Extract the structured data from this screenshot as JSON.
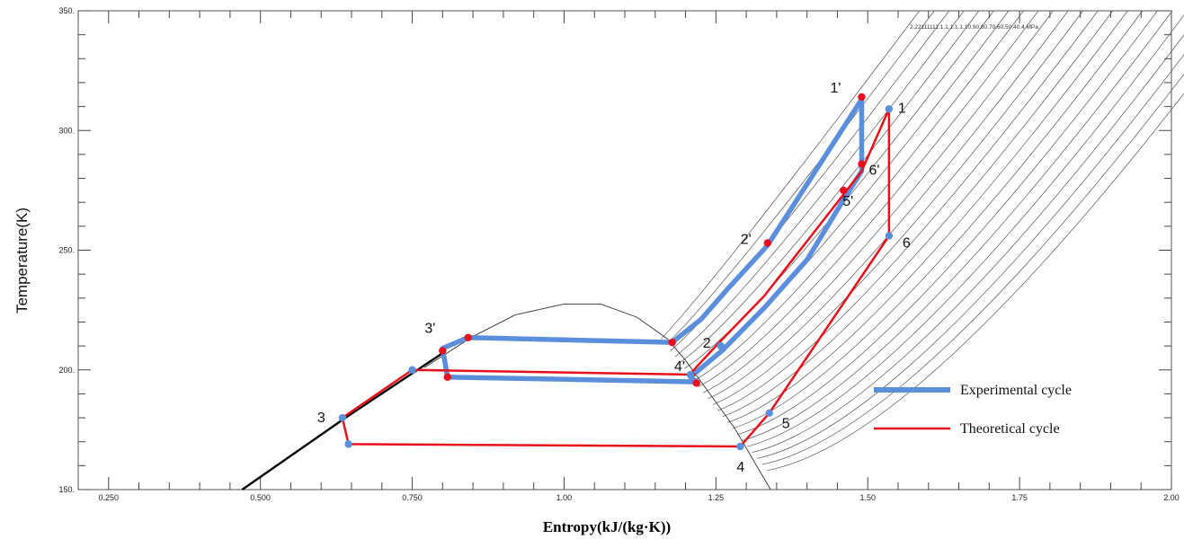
{
  "chart_data": {
    "type": "line",
    "title": "",
    "xlabel": "Entropy(kJ/(kg·K))",
    "ylabel": "Temperature(K)",
    "xlim": [
      0.2,
      2.0
    ],
    "ylim": [
      150,
      350
    ],
    "x_ticks": [
      {
        "value": 0.25,
        "label": "0.250"
      },
      {
        "value": 0.5,
        "label": "0.500"
      },
      {
        "value": 0.75,
        "label": "0.750"
      },
      {
        "value": 1.0,
        "label": "1.00"
      },
      {
        "value": 1.25,
        "label": "1.25"
      },
      {
        "value": 1.5,
        "label": "1.50"
      },
      {
        "value": 1.75,
        "label": "1.75"
      },
      {
        "value": 2.0,
        "label": "2.00"
      }
    ],
    "y_ticks": [
      {
        "value": 150,
        "label": "150."
      },
      {
        "value": 200,
        "label": "200."
      },
      {
        "value": 250,
        "label": "250."
      },
      {
        "value": 300,
        "label": "300."
      },
      {
        "value": 350,
        "label": "350."
      }
    ],
    "isobar_label": "2.22111111.1.1.1.1.1.10.90.80.70.60.50.40.4 MPa",
    "saturation_dome": {
      "x": [
        0.77,
        0.85,
        0.92,
        1.0,
        1.06,
        1.12,
        1.17,
        1.2,
        1.24,
        1.28,
        1.31,
        1.34
      ],
      "y": [
        201,
        214,
        223,
        227.5,
        227.5,
        222,
        213,
        204,
        190,
        176,
        163,
        150
      ]
    },
    "liquid_line": {
      "x": [
        0.47,
        0.64,
        0.8
      ],
      "y": [
        150,
        180,
        207
      ]
    },
    "series": [
      {
        "name": "Experimental cycle",
        "color": "#5b8fdc",
        "x": [
          1.49,
          1.335,
          1.27,
          1.225,
          1.178,
          0.842,
          0.8,
          0.808,
          1.218,
          1.208,
          1.26,
          1.33,
          1.4,
          1.46,
          1.49,
          1.49
        ],
        "y": [
          313,
          252,
          234,
          221,
          211.5,
          213.5,
          209,
          197,
          195,
          197,
          208,
          226,
          246,
          271,
          283,
          313
        ]
      },
      {
        "name": "Theoretical cycle",
        "color": "#e8101c",
        "x": [
          1.535,
          1.535,
          1.338,
          1.29,
          0.645,
          0.635,
          0.75,
          1.215,
          1.21,
          1.25,
          1.33,
          1.49,
          1.535
        ],
        "y": [
          309,
          256,
          182,
          168,
          169,
          180,
          200,
          198,
          199,
          210,
          231,
          283,
          309
        ]
      }
    ],
    "points": [
      {
        "label": "1'",
        "x": 1.49,
        "y": 314,
        "color": "#e8101c",
        "dx": -35,
        "dy": -5
      },
      {
        "label": "1",
        "x": 1.535,
        "y": 309,
        "color": "#5b8fdc",
        "dx": 10,
        "dy": 4
      },
      {
        "label": "6'",
        "x": 1.49,
        "y": 286,
        "color": "#e8101c",
        "dx": 8,
        "dy": 12
      },
      {
        "label": "5'",
        "x": 1.46,
        "y": 275,
        "color": "#e8101c",
        "dx": -1,
        "dy": 17
      },
      {
        "label": "6",
        "x": 1.535,
        "y": 256,
        "color": "#5b8fdc",
        "dx": 15,
        "dy": 13
      },
      {
        "label": "2'",
        "x": 1.335,
        "y": 253,
        "color": "#e8101c",
        "dx": -30,
        "dy": 1
      },
      {
        "label": "2",
        "x": 1.258,
        "y": 210,
        "color": "#5b8fdc",
        "dx": -20,
        "dy": 2
      },
      {
        "label": "3'",
        "x": 0.8,
        "y": 208,
        "color": "#e8101c",
        "dx": -20,
        "dy": -20
      },
      {
        "label": "4'",
        "x": 1.208,
        "y": 198,
        "color": "#5b8fdc",
        "dx": -18,
        "dy": -4
      },
      {
        "label": "3",
        "x": 0.635,
        "y": 180,
        "color": "#5b8fdc",
        "dx": -28,
        "dy": 5
      },
      {
        "label": "5",
        "x": 1.338,
        "y": 182,
        "color": "#5b8fdc",
        "dx": 14,
        "dy": 17
      },
      {
        "label": "4",
        "x": 1.29,
        "y": 168,
        "color": "#5b8fdc",
        "dx": -4,
        "dy": 28
      },
      {
        "x": 0.842,
        "y": 213.5,
        "color": "#e8101c"
      },
      {
        "x": 1.178,
        "y": 211.5,
        "color": "#e8101c"
      },
      {
        "x": 0.808,
        "y": 197,
        "color": "#e8101c"
      },
      {
        "x": 1.218,
        "y": 194.5,
        "color": "#e8101c"
      },
      {
        "x": 0.75,
        "y": 200,
        "color": "#5b8fdc"
      },
      {
        "x": 0.645,
        "y": 169,
        "color": "#5b8fdc"
      }
    ],
    "legend": {
      "placement": "bottom-right",
      "entries": [
        {
          "label": "Experimental cycle",
          "color": "#5b8fdc"
        },
        {
          "label": "Theoretical cycle",
          "color": "#e8101c"
        }
      ]
    },
    "grid": false
  }
}
